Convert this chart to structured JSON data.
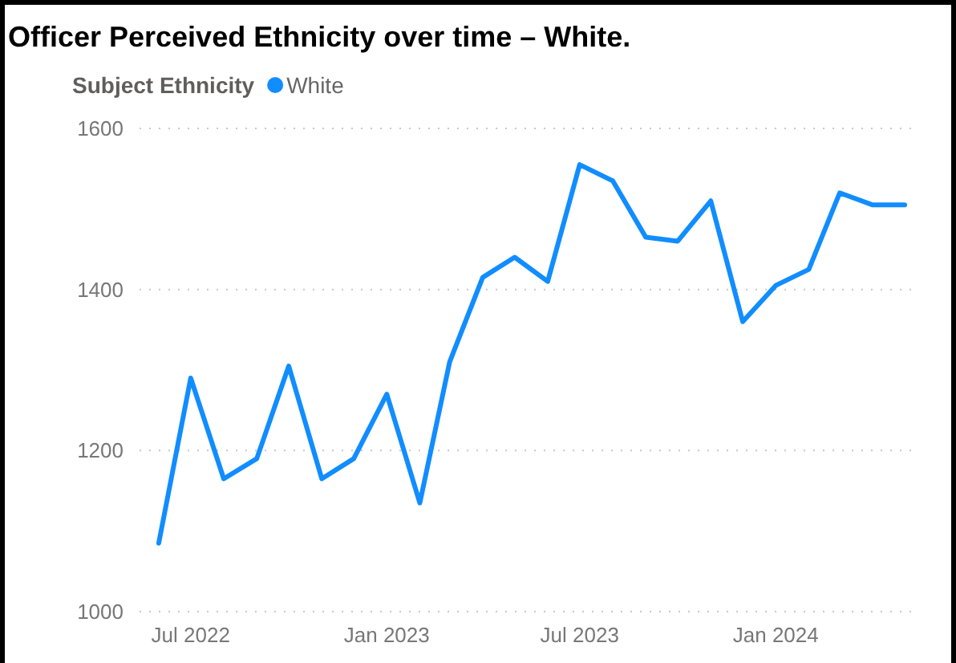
{
  "chart_data": {
    "type": "line",
    "title": "Officer Perceived Ethnicity over time – White.",
    "legend_title": "Subject Ethnicity",
    "x": [
      "2022-06",
      "2022-07",
      "2022-08",
      "2022-09",
      "2022-10",
      "2022-11",
      "2022-12",
      "2023-01",
      "2023-02",
      "2023-03",
      "2023-04",
      "2023-05",
      "2023-06",
      "2023-07",
      "2023-08",
      "2023-09",
      "2023-10",
      "2023-11",
      "2023-12",
      "2024-01",
      "2024-02",
      "2024-03",
      "2024-04",
      "2024-05"
    ],
    "series": [
      {
        "name": "White",
        "color": "#118dff",
        "values": [
          1085,
          1290,
          1165,
          1190,
          1305,
          1165,
          1190,
          1270,
          1135,
          1310,
          1415,
          1440,
          1410,
          1555,
          1535,
          1465,
          1460,
          1510,
          1360,
          1405,
          1425,
          1520,
          1505,
          1505
        ]
      }
    ],
    "xlim": [
      "2022-05-14",
      "2024-05-13"
    ],
    "xticks": [
      {
        "value": "2022-07",
        "label": "Jul 2022"
      },
      {
        "value": "2023-01",
        "label": "Jan 2023"
      },
      {
        "value": "2023-07",
        "label": "Jul 2023"
      },
      {
        "value": "2024-01",
        "label": "Jan 2024"
      }
    ],
    "ylim": [
      1000,
      1600
    ],
    "yticks": [
      1000,
      1200,
      1400,
      1600
    ],
    "grid": "y",
    "legend": "top left"
  }
}
